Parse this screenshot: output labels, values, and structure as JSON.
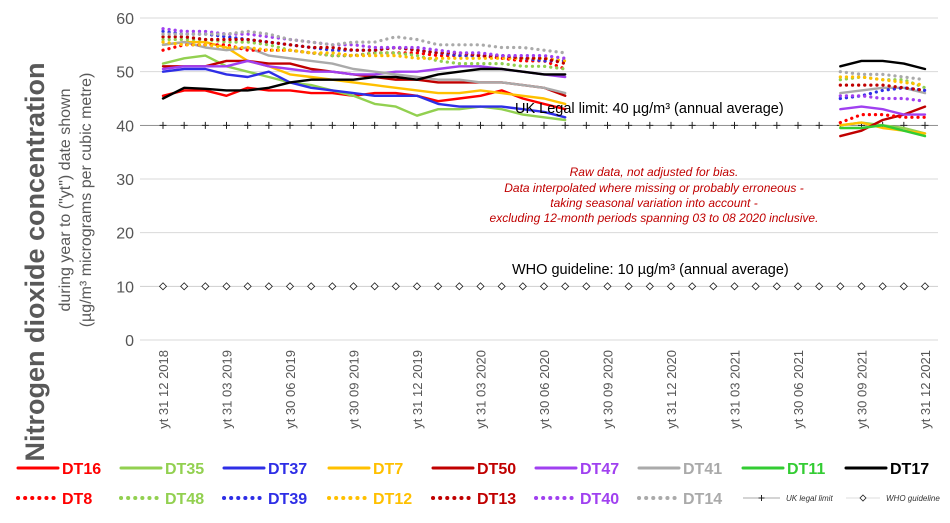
{
  "chart_data": {
    "type": "line",
    "ylabel_main": "Nitrogen dioxide concentration",
    "ylabel_sub1": "during year to (\"yt\") date shown",
    "ylabel_sub2": "(µg/m³ micrograms per cubic metre)",
    "ylim": [
      0,
      60
    ],
    "yticks": [
      "0",
      "10",
      "20",
      "30",
      "40",
      "50",
      "60"
    ],
    "x_tick_labels": [
      "yt 31 12 2018",
      "yt 31 03 2019",
      "yt 30 06 2019",
      "yt 30 09 2019",
      "yt 31 12 2019",
      "yt 31 03 2020",
      "yt 30 06 2020",
      "yt 30 09 2020",
      "yt 31 12 2020",
      "yt 31 03 2021",
      "yt 30 06 2021",
      "yt 30 09 2021",
      "yt 31 12 2021"
    ],
    "uk_limit_label": "UK Legal limit: 40 µg/m³ (annual average)",
    "who_label": "WHO guideline: 10 µg/m³ (annual average)",
    "uk_limit_value": 40,
    "who_value": 10,
    "note_lines": [
      "Raw data, not adjusted for bias.",
      "Data interpolated where missing or probably erroneous -",
      "taking seasonal variation into account -",
      "excluding 12-month periods spanning 03 to 08 2020 inclusive."
    ],
    "note_color": "#c00000",
    "series": [
      {
        "name": "DT16",
        "color": "#ff0000",
        "dash": false,
        "seg1": [
          45.5,
          46.5,
          46.5,
          45.5,
          47,
          46.5,
          46.5,
          46,
          46,
          45.5,
          46,
          46,
          45.5,
          44.5,
          45,
          45.5,
          46.5,
          45,
          44,
          43
        ],
        "seg2": [
          null,
          null,
          null,
          null,
          null
        ]
      },
      {
        "name": "DT35",
        "color": "#92d050",
        "dash": false,
        "seg1": [
          51.5,
          52.5,
          53,
          51,
          50,
          49,
          48,
          47.5,
          46.5,
          45.5,
          44,
          43.5,
          41.8,
          43,
          43,
          43.5,
          43,
          42,
          41.5,
          41
        ],
        "seg2": [
          40,
          40.5,
          40,
          39.5,
          38.5
        ]
      },
      {
        "name": "DT37",
        "color": "#2e2ee6",
        "dash": false,
        "seg1": [
          50,
          50.5,
          50.5,
          49.5,
          49,
          50,
          48,
          47,
          46.5,
          46,
          45.5,
          45.5,
          45.5,
          44,
          43.5,
          43.5,
          43.5,
          43,
          42.5,
          41.5
        ],
        "seg2": [
          null,
          null,
          null,
          null,
          null
        ]
      },
      {
        "name": "DT7",
        "color": "#ffc000",
        "dash": false,
        "seg1": [
          55,
          55.5,
          55.5,
          54.5,
          52,
          51,
          49.5,
          49,
          48.5,
          48,
          47.5,
          47,
          46.5,
          46,
          46,
          46.5,
          46,
          45.5,
          45,
          44
        ],
        "seg2": [
          40,
          40.5,
          39.5,
          39,
          38.5
        ]
      },
      {
        "name": "DT50",
        "color": "#c00000",
        "dash": false,
        "seg1": [
          51,
          51,
          51,
          52,
          52,
          51.5,
          51.5,
          50.5,
          50,
          49.5,
          49,
          48.5,
          48.5,
          48,
          48,
          48,
          48,
          47.5,
          47,
          45.5
        ],
        "seg2": [
          38,
          39,
          41,
          42,
          43.5
        ]
      },
      {
        "name": "DT47",
        "color": "#a040f0",
        "dash": false,
        "seg1": [
          50.5,
          51,
          51,
          51,
          52,
          51,
          50.5,
          50,
          50,
          49.5,
          49.5,
          50,
          50,
          50.5,
          51,
          51,
          50.5,
          50,
          49.5,
          49
        ],
        "seg2": [
          43,
          43.5,
          43,
          42,
          42
        ]
      },
      {
        "name": "DT41",
        "color": "#aaaaaa",
        "dash": false,
        "seg1": [
          55,
          55.5,
          54.5,
          54,
          54.5,
          53,
          52.5,
          52,
          51.5,
          50.5,
          50,
          49.5,
          49,
          48.5,
          48.5,
          48,
          48,
          47.5,
          47,
          46
        ],
        "seg2": [
          46,
          46.5,
          47,
          47,
          46
        ]
      },
      {
        "name": "DT11",
        "color": "#33cc33",
        "dash": false,
        "seg1": [
          null,
          null,
          null,
          null,
          null,
          null,
          null,
          null,
          null,
          null,
          null,
          null,
          null,
          null,
          null,
          null,
          null,
          null,
          null,
          null
        ],
        "seg2": [
          39.5,
          39.5,
          40,
          39,
          38
        ]
      },
      {
        "name": "DT17",
        "color": "#000000",
        "dash": false,
        "seg1": [
          45,
          47,
          46.8,
          46.5,
          46.5,
          47,
          48,
          48.5,
          48.5,
          48.5,
          49,
          49,
          48.5,
          49.5,
          50,
          50.5,
          50.5,
          50,
          49.5,
          49.5
        ],
        "seg2": [
          51,
          52,
          52,
          51.5,
          50.5
        ]
      },
      {
        "name": "DT8",
        "color": "#ff0000",
        "dash": true,
        "seg1": [
          54,
          55,
          55,
          55,
          54,
          54,
          54,
          53.5,
          53,
          53,
          53.5,
          53.5,
          53.5,
          53,
          53,
          53,
          52.5,
          52,
          52,
          50.5
        ],
        "seg2": [
          40.5,
          42,
          42,
          41.5,
          41.5
        ]
      },
      {
        "name": "DT48",
        "color": "#92d050",
        "dash": true,
        "seg1": [
          56,
          56,
          56,
          55.5,
          55.5,
          55,
          54,
          53.5,
          53,
          53,
          53.5,
          53.5,
          53,
          52,
          51.5,
          51.5,
          51.5,
          51,
          51,
          50.5
        ],
        "seg2": [
          48.5,
          49,
          48.5,
          48.5,
          47
        ]
      },
      {
        "name": "DT39",
        "color": "#2e2ee6",
        "dash": true,
        "seg1": [
          57.5,
          57,
          57,
          56.5,
          56,
          55.5,
          55,
          54.5,
          54,
          54,
          54,
          54.5,
          54,
          53.5,
          53,
          53,
          53,
          52.5,
          52,
          52
        ],
        "seg2": [
          45,
          45.5,
          46.5,
          47,
          46.5
        ]
      },
      {
        "name": "DT12",
        "color": "#ffc000",
        "dash": true,
        "seg1": [
          55.5,
          55,
          55,
          54.5,
          54.5,
          54,
          54,
          53.5,
          53.5,
          53,
          53,
          53,
          52.5,
          52.5,
          52.5,
          52.5,
          52.5,
          52.5,
          52.5,
          52
        ],
        "seg2": [
          49,
          49,
          48.5,
          48,
          47.5
        ]
      },
      {
        "name": "DT13",
        "color": "#c00000",
        "dash": true,
        "seg1": [
          56.5,
          56.5,
          56,
          56,
          56,
          55.5,
          55,
          54.5,
          54.5,
          54,
          54,
          54.5,
          54,
          53.5,
          53.5,
          53,
          53,
          52.5,
          52.5,
          51.5
        ],
        "seg2": [
          47.5,
          47.5,
          47.5,
          47,
          46.5
        ]
      },
      {
        "name": "DT40",
        "color": "#a040f0",
        "dash": true,
        "seg1": [
          58,
          57.5,
          57.5,
          57,
          57,
          56.5,
          56,
          55.5,
          55,
          55,
          54.5,
          54.5,
          54.5,
          54,
          53.5,
          53.5,
          53,
          53,
          53,
          52.5
        ],
        "seg2": [
          45.5,
          45.5,
          45,
          45,
          44.5
        ]
      },
      {
        "name": "DT14",
        "color": "#aaaaaa",
        "dash": true,
        "seg1": [
          57,
          57,
          57,
          57,
          57.5,
          57,
          56,
          55.5,
          55,
          55.5,
          55.5,
          56.5,
          56,
          55,
          55,
          55,
          54.5,
          54.5,
          54,
          53.5
        ],
        "seg2": [
          50,
          49.5,
          49.5,
          49,
          48.5
        ]
      }
    ],
    "legend_uk": "UK legal limit",
    "legend_who": "WHO guideline"
  }
}
